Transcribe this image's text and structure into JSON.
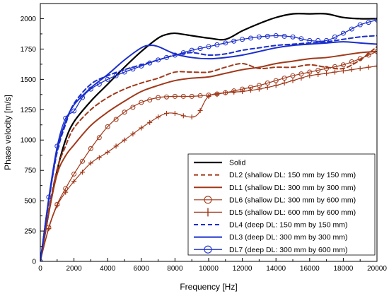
{
  "chart_data": {
    "type": "line",
    "xlabel": "Frequency [Hz]",
    "ylabel": "Phase velocity [m/s]",
    "xlim": [
      0,
      20000
    ],
    "ylim": [
      0,
      2125
    ],
    "xticks": [
      0,
      2000,
      4000,
      6000,
      8000,
      10000,
      12000,
      14000,
      16000,
      18000,
      20000
    ],
    "yticks": [
      0,
      250,
      500,
      750,
      1000,
      1250,
      1500,
      1750,
      2000
    ],
    "xtick_labels": [
      "0",
      "2000",
      "4000",
      "6000",
      "8000",
      "10000",
      "12000",
      "14000",
      "16000",
      "18000",
      "20000"
    ],
    "ytick_labels": [
      "0",
      "250",
      "500",
      "750",
      "1000",
      "1250",
      "1500",
      "1750",
      "2000"
    ],
    "grid": false,
    "legend_position": "bottom-right",
    "series": [
      {
        "name": "Solid",
        "color": "#000000",
        "dash": "solid",
        "width": 2.2,
        "marker": "none",
        "x": [
          0,
          500,
          1000,
          1500,
          2000,
          3000,
          4000,
          5000,
          6000,
          7000,
          7500,
          8000,
          9000,
          10000,
          11000,
          12000,
          13000,
          14000,
          15000,
          16000,
          17000,
          18000,
          19000,
          20000
        ],
        "y": [
          0,
          400,
          750,
          1000,
          1150,
          1320,
          1460,
          1600,
          1730,
          1840,
          1870,
          1880,
          1860,
          1840,
          1830,
          1900,
          1960,
          2010,
          2040,
          2040,
          2040,
          2010,
          2000,
          2000
        ]
      },
      {
        "name": "DL2 (shallow DL: 150 mm by 150 mm)",
        "color": "#a0391a",
        "dash": "dashed",
        "width": 2,
        "marker": "none",
        "x": [
          0,
          500,
          1000,
          1500,
          2000,
          3000,
          4000,
          5000,
          6000,
          7000,
          8000,
          9000,
          10000,
          11000,
          12000,
          13000,
          14000,
          15000,
          16000,
          17000,
          18000,
          19000,
          20000
        ],
        "y": [
          0,
          420,
          760,
          950,
          1100,
          1250,
          1350,
          1420,
          1470,
          1510,
          1560,
          1560,
          1560,
          1600,
          1630,
          1590,
          1600,
          1600,
          1620,
          1600,
          1590,
          1660,
          1770
        ]
      },
      {
        "name": "DL1 (shallow DL: 300 mm by 300 mm)",
        "color": "#a0391a",
        "dash": "solid",
        "width": 2,
        "marker": "none",
        "x": [
          0,
          500,
          1000,
          1500,
          2000,
          3000,
          4000,
          5000,
          6000,
          7000,
          8000,
          9000,
          10000,
          11000,
          12000,
          13000,
          14000,
          15000,
          16000,
          17000,
          18000,
          19000,
          20000
        ],
        "y": [
          0,
          400,
          720,
          870,
          960,
          1120,
          1230,
          1320,
          1400,
          1450,
          1490,
          1510,
          1520,
          1550,
          1580,
          1600,
          1630,
          1650,
          1670,
          1680,
          1700,
          1720,
          1730
        ]
      },
      {
        "name": "DL6 (shallow DL: 300 mm by 600 mm)",
        "color": "#a0391a",
        "dash": "solid",
        "width": 1.2,
        "marker": "circle",
        "x": [
          0,
          500,
          1000,
          1500,
          2000,
          3000,
          4000,
          5000,
          6000,
          7000,
          8000,
          9000,
          10000,
          11000,
          12000,
          13000,
          14000,
          15000,
          16000,
          17000,
          18000,
          19000,
          20000
        ],
        "y": [
          0,
          280,
          470,
          600,
          720,
          930,
          1110,
          1230,
          1310,
          1350,
          1360,
          1360,
          1370,
          1390,
          1420,
          1450,
          1490,
          1530,
          1560,
          1590,
          1620,
          1670,
          1730
        ]
      },
      {
        "name": "DL5 (shallow DL: 600 mm by 600 mm)",
        "color": "#a0391a",
        "dash": "solid",
        "width": 1.2,
        "marker": "plus",
        "x": [
          0,
          500,
          1000,
          1500,
          2000,
          3000,
          4000,
          5000,
          6000,
          7000,
          7500,
          8000,
          8500,
          9000,
          9400,
          10000,
          11000,
          12000,
          13000,
          14000,
          15000,
          16000,
          17000,
          18000,
          19000,
          20000
        ],
        "y": [
          0,
          270,
          460,
          570,
          660,
          810,
          900,
          1000,
          1100,
          1190,
          1220,
          1220,
          1200,
          1190,
          1220,
          1360,
          1390,
          1400,
          1420,
          1450,
          1490,
          1530,
          1550,
          1570,
          1590,
          1610
        ]
      },
      {
        "name": "DL4 (deep DL: 150 mm by 150 mm)",
        "color": "#1a2ecc",
        "dash": "dashed",
        "width": 2,
        "marker": "none",
        "x": [
          0,
          500,
          1000,
          1500,
          2000,
          3000,
          4000,
          5000,
          6000,
          7000,
          8000,
          9000,
          10000,
          11000,
          12000,
          13000,
          14000,
          15000,
          16000,
          17000,
          18000,
          19000,
          20000
        ],
        "y": [
          0,
          500,
          900,
          1130,
          1300,
          1460,
          1530,
          1580,
          1620,
          1660,
          1700,
          1720,
          1700,
          1710,
          1740,
          1760,
          1780,
          1790,
          1800,
          1810,
          1830,
          1850,
          1860
        ]
      },
      {
        "name": "DL3 (deep DL: 300 mm by 300 mm)",
        "color": "#1a2ecc",
        "dash": "solid",
        "width": 2,
        "marker": "none",
        "x": [
          0,
          500,
          1000,
          1500,
          2000,
          3000,
          4000,
          5000,
          6000,
          6500,
          7000,
          8000,
          9000,
          10000,
          11000,
          12000,
          13000,
          14000,
          15000,
          16000,
          17000,
          18000,
          19000,
          20000
        ],
        "y": [
          0,
          500,
          920,
          1150,
          1290,
          1430,
          1540,
          1660,
          1760,
          1780,
          1770,
          1710,
          1680,
          1670,
          1680,
          1700,
          1730,
          1760,
          1780,
          1790,
          1800,
          1810,
          1800,
          1790
        ]
      },
      {
        "name": "DL7 (deep DL: 300 mm by 600 mm)",
        "color": "#1a2ecc",
        "dash": "solid",
        "width": 1.3,
        "marker": "circle",
        "x": [
          0,
          500,
          1000,
          1500,
          2000,
          2500,
          3000,
          4000,
          5000,
          6000,
          7000,
          8000,
          9000,
          10000,
          11000,
          12000,
          13000,
          14000,
          15000,
          16000,
          17000,
          18000,
          19000,
          20000
        ],
        "y": [
          0,
          530,
          950,
          1180,
          1240,
          1350,
          1420,
          1500,
          1560,
          1610,
          1660,
          1700,
          1740,
          1770,
          1800,
          1830,
          1850,
          1860,
          1850,
          1820,
          1820,
          1880,
          1950,
          1990
        ]
      }
    ]
  }
}
